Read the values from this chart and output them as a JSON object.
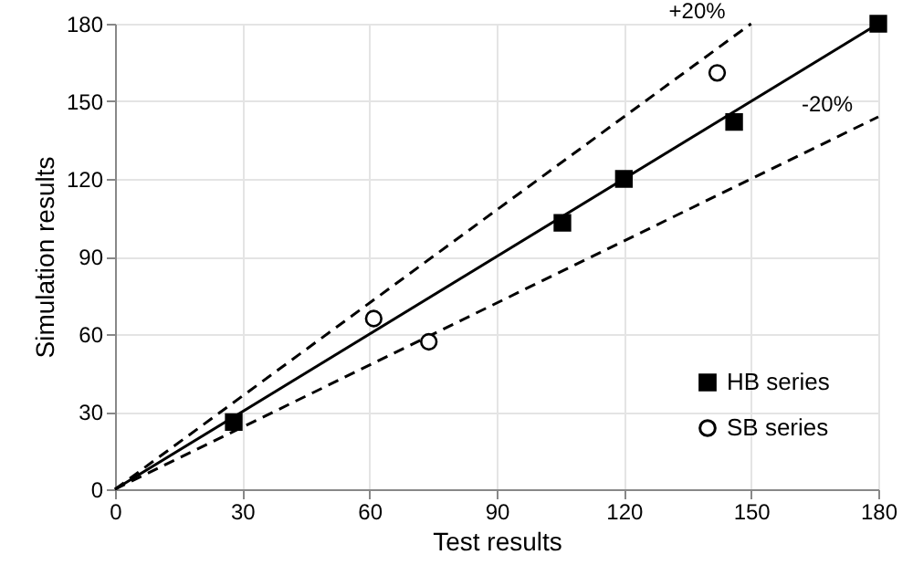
{
  "chart_data": {
    "type": "scatter",
    "xlabel": "Test results",
    "ylabel": "Simulation results",
    "xlim": [
      0,
      180
    ],
    "ylim": [
      0,
      180
    ],
    "xticks": [
      0,
      30,
      60,
      90,
      120,
      150,
      180
    ],
    "yticks": [
      0,
      30,
      60,
      90,
      120,
      150,
      180
    ],
    "grid": true,
    "legend": "bottom right",
    "series": [
      {
        "type": "line",
        "color": "#000000",
        "line_style": "solid",
        "marker": "none",
        "x": [
          0,
          180
        ],
        "values": [
          0,
          180
        ]
      },
      {
        "name": "+20%",
        "type": "line",
        "color": "#000000",
        "line_style": "dashed",
        "marker": "none",
        "x": [
          0,
          150
        ],
        "values": [
          0,
          180
        ]
      },
      {
        "name": "-20%",
        "type": "line",
        "color": "#000000",
        "line_style": "dashed",
        "marker": "none",
        "x": [
          0,
          180
        ],
        "values": [
          0,
          144
        ]
      },
      {
        "name": "HB series",
        "color": "#000000",
        "marker": "square",
        "x": [
          28,
          105.5,
          120,
          146,
          180
        ],
        "values": [
          26,
          103,
          120,
          142,
          180
        ]
      },
      {
        "name": "SB series",
        "color": "#000000",
        "marker": "circle",
        "x": [
          61,
          74,
          142
        ],
        "values": [
          66,
          57,
          161
        ]
      }
    ]
  }
}
